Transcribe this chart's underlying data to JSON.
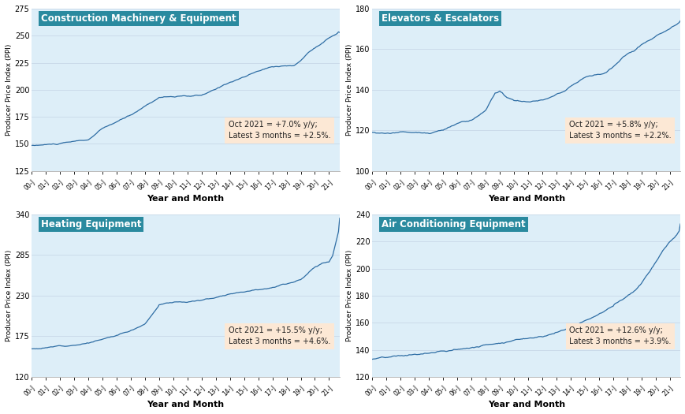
{
  "subplots": [
    {
      "title": "Construction Machinery & Equipment",
      "annotation": "Oct 2021 = +7.0% y/y;\nLatest 3 months = +2.5%.",
      "ylabel": "Producer Price Index (PPI)",
      "xlabel": "Year and Month",
      "ylim": [
        125,
        275
      ],
      "yticks": [
        125,
        150,
        175,
        200,
        225,
        250,
        275
      ],
      "line_color": "#2e6da4",
      "bg_color": "#ddeef8"
    },
    {
      "title": "Elevators & Escalators",
      "annotation": "Oct 2021 = +5.8% y/y;\nLatest 3 months = +2.2%.",
      "ylabel": "Producer Price Index (PPI)",
      "xlabel": "Year and Month",
      "ylim": [
        100,
        180
      ],
      "yticks": [
        100,
        120,
        140,
        160,
        180
      ],
      "line_color": "#2e6da4",
      "bg_color": "#ddeef8"
    },
    {
      "title": "Heating Equipment",
      "annotation": "Oct 2021 = +15.5% y/y;\nLatest 3 months = +4.6%.",
      "ylabel": "Producer Price Index (PPI)",
      "xlabel": "Year and Month",
      "ylim": [
        120,
        340
      ],
      "yticks": [
        120,
        175,
        230,
        285,
        340
      ],
      "line_color": "#2e6da4",
      "bg_color": "#ddeef8"
    },
    {
      "title": "Air Conditioning Equipment",
      "annotation": "Oct 2021 = +12.6% y/y;\nLatest 3 months = +3.9%.",
      "ylabel": "Producer Price Index (PPI)",
      "xlabel": "Year and Month",
      "ylim": [
        120,
        240
      ],
      "yticks": [
        120,
        140,
        160,
        180,
        200,
        220,
        240
      ],
      "line_color": "#2e6da4",
      "bg_color": "#ddeef8"
    }
  ],
  "title_bg_color": "#2a8a9f",
  "title_text_color": "#ffffff",
  "annotation_bg_color": "#fce8d5",
  "annotation_text_color": "#222222",
  "x_tick_labels": [
    "00-J",
    "01-J",
    "02-J",
    "03-J",
    "04-J",
    "05-J",
    "06-J",
    "07-J",
    "08-J",
    "09-J",
    "10-J",
    "11-J",
    "12-J",
    "13-J",
    "14-J",
    "15-J",
    "16-J",
    "17-J",
    "18-J",
    "19-J",
    "20-J",
    "21-J"
  ],
  "figure_bg": "#ffffff",
  "grid_color": "#c8d8e8"
}
